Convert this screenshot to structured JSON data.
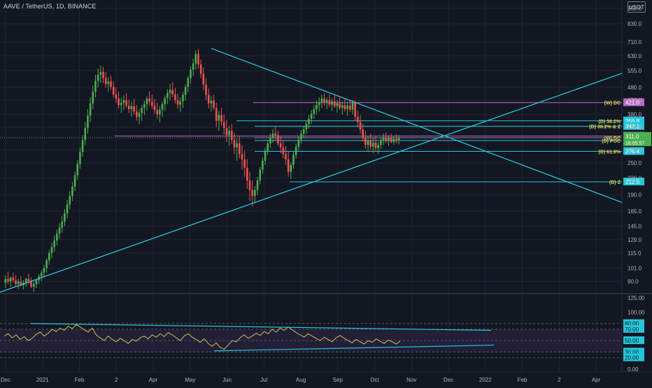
{
  "header": {
    "symbol_title": "AAVE / TetherUS, 1D, BINANCE",
    "currency": "USDT"
  },
  "colors": {
    "background": "#131722",
    "grid": "#1f2430",
    "axis_text": "#b2b5be",
    "up": "#26a69a",
    "up_body": "#4caf50",
    "down": "#ef5350",
    "trendline": "#26c6da",
    "weekly_level": "#ba68c8",
    "rsi_line": "#d4c04f",
    "rsi_band": "#2a2440",
    "label_yellow": "#e6d04f",
    "current_price": "#4caf50"
  },
  "chart_data": [
    {
      "type": "candlestick",
      "price_scale": "log",
      "ylim": [
        82,
        1020
      ],
      "x_tick_labels": [
        "Dec",
        "2021",
        "Feb",
        "2",
        "Apr",
        "May",
        "Jun",
        "Jul",
        "Aug",
        "Sep",
        "Oct",
        "Nov",
        "Dec",
        "2022",
        "Feb",
        "2",
        "Apr"
      ],
      "y_tick_labels": [
        "950.0",
        "830.0",
        "710.0",
        "630.0",
        "555.0",
        "480.0",
        "430.0",
        "380.0",
        "340.0",
        "280.0",
        "250.0",
        "220.0",
        "190.0",
        "165.0",
        "145.0",
        "129.0",
        "115.0",
        "101.0",
        "90.0"
      ],
      "y_tick_values": [
        950,
        830,
        710,
        630,
        555,
        480,
        430,
        380,
        340,
        280,
        250,
        220,
        190,
        165,
        145,
        129,
        115,
        101,
        90
      ],
      "price_levels": [
        {
          "label": "(W) DC",
          "value": 421.0,
          "value_label": "421.0",
          "color": "#ba68c8"
        },
        {
          "label": "(D) 38.2%",
          "value": 359.8,
          "value_label": "359.8",
          "color": "#26c6da"
        },
        {
          "label": "(D) 38.2% & Z",
          "value": 343.1,
          "value_label": "343.1",
          "color": "#26c6da"
        },
        {
          "label": "",
          "value": 315.5,
          "value_label": "315.5",
          "color": "#ba68c8"
        },
        {
          "label": "(W) DC",
          "value": 311.0,
          "value_label": "311.0",
          "color": "#ba68c8"
        },
        {
          "label": "(D) POC",
          "value": 303.5,
          "value_label": "303.5",
          "color": "#26c6da"
        },
        {
          "label": "(D) 61.8%",
          "value": 276.4,
          "value_label": "276.4",
          "color": "#26c6da"
        },
        {
          "label": "(D) Z",
          "value": 212.5,
          "value_label": "212.5",
          "color": "#26c6da"
        }
      ],
      "current_price": {
        "value": 311.0,
        "value_label": "311.0",
        "countdown": "16:05:57"
      },
      "candles_ohlc": [
        [
          89,
          95,
          85,
          92
        ],
        [
          92,
          98,
          88,
          90
        ],
        [
          90,
          94,
          86,
          93
        ],
        [
          93,
          97,
          89,
          91
        ],
        [
          91,
          95,
          86,
          88
        ],
        [
          88,
          92,
          84,
          90
        ],
        [
          90,
          94,
          86,
          87
        ],
        [
          87,
          91,
          84,
          89
        ],
        [
          89,
          93,
          86,
          92
        ],
        [
          92,
          96,
          88,
          90
        ],
        [
          90,
          93,
          85,
          86
        ],
        [
          86,
          90,
          82,
          88
        ],
        [
          88,
          92,
          85,
          91
        ],
        [
          91,
          96,
          88,
          94
        ],
        [
          94,
          99,
          90,
          97
        ],
        [
          97,
          104,
          93,
          101
        ],
        [
          101,
          110,
          97,
          108
        ],
        [
          108,
          118,
          104,
          115
        ],
        [
          115,
          126,
          110,
          121
        ],
        [
          121,
          134,
          116,
          128
        ],
        [
          128,
          141,
          123,
          136
        ],
        [
          136,
          149,
          130,
          143
        ],
        [
          143,
          158,
          137,
          151
        ],
        [
          151,
          168,
          145,
          162
        ],
        [
          162,
          182,
          155,
          175
        ],
        [
          175,
          196,
          168,
          188
        ],
        [
          188,
          212,
          180,
          204
        ],
        [
          204,
          232,
          196,
          225
        ],
        [
          225,
          256,
          216,
          248
        ],
        [
          248,
          286,
          238,
          275
        ],
        [
          275,
          318,
          264,
          305
        ],
        [
          305,
          356,
          292,
          338
        ],
        [
          338,
          398,
          322,
          376
        ],
        [
          376,
          440,
          356,
          418
        ],
        [
          418,
          488,
          398,
          462
        ],
        [
          462,
          535,
          440,
          508
        ],
        [
          508,
          565,
          480,
          535
        ],
        [
          535,
          580,
          500,
          548
        ],
        [
          548,
          572,
          498,
          520
        ],
        [
          520,
          548,
          478,
          494
        ],
        [
          494,
          525,
          462,
          505
        ],
        [
          505,
          530,
          470,
          482
        ],
        [
          482,
          505,
          440,
          452
        ],
        [
          452,
          480,
          420,
          436
        ],
        [
          436,
          462,
          400,
          412
        ],
        [
          412,
          440,
          385,
          420
        ],
        [
          420,
          448,
          395,
          430
        ],
        [
          430,
          456,
          402,
          410
        ],
        [
          410,
          432,
          385,
          398
        ],
        [
          398,
          425,
          372,
          408
        ],
        [
          408,
          435,
          380,
          390
        ],
        [
          390,
          412,
          360,
          372
        ],
        [
          372,
          398,
          350,
          385
        ],
        [
          385,
          412,
          360,
          402
        ],
        [
          402,
          428,
          378,
          416
        ],
        [
          416,
          445,
          392,
          436
        ],
        [
          436,
          465,
          410,
          424
        ],
        [
          424,
          450,
          398,
          410
        ],
        [
          410,
          435,
          382,
          395
        ],
        [
          395,
          420,
          366,
          380
        ],
        [
          380,
          408,
          355,
          396
        ],
        [
          396,
          425,
          372,
          416
        ],
        [
          416,
          448,
          392,
          438
        ],
        [
          438,
          472,
          414,
          458
        ],
        [
          458,
          495,
          430,
          470
        ],
        [
          470,
          502,
          440,
          452
        ],
        [
          452,
          478,
          418,
          430
        ],
        [
          430,
          455,
          400,
          414
        ],
        [
          414,
          440,
          388,
          426
        ],
        [
          426,
          462,
          402,
          450
        ],
        [
          450,
          492,
          428,
          482
        ],
        [
          482,
          530,
          460,
          520
        ],
        [
          520,
          575,
          496,
          560
        ],
        [
          560,
          615,
          530,
          590
        ],
        [
          590,
          660,
          560,
          640
        ],
        [
          640,
          668,
          565,
          585
        ],
        [
          585,
          610,
          520,
          540
        ],
        [
          540,
          570,
          470,
          492
        ],
        [
          492,
          520,
          430,
          450
        ],
        [
          450,
          475,
          400,
          418
        ],
        [
          418,
          445,
          390,
          428
        ],
        [
          428,
          450,
          395,
          402
        ],
        [
          402,
          420,
          340,
          360
        ],
        [
          360,
          392,
          330,
          378
        ],
        [
          378,
          402,
          345,
          356
        ],
        [
          356,
          380,
          320,
          338
        ],
        [
          338,
          362,
          300,
          318
        ],
        [
          318,
          345,
          290,
          330
        ],
        [
          330,
          350,
          295,
          305
        ],
        [
          305,
          325,
          270,
          286
        ],
        [
          286,
          310,
          255,
          296
        ],
        [
          296,
          315,
          260,
          270
        ],
        [
          270,
          292,
          236,
          258
        ],
        [
          258,
          278,
          222,
          240
        ],
        [
          240,
          258,
          200,
          215
        ],
        [
          215,
          232,
          180,
          198
        ],
        [
          198,
          215,
          172,
          188
        ],
        [
          188,
          205,
          176,
          198
        ],
        [
          198,
          222,
          190,
          215
        ],
        [
          215,
          242,
          208,
          236
        ],
        [
          236,
          262,
          228,
          255
        ],
        [
          255,
          285,
          246,
          278
        ],
        [
          278,
          305,
          268,
          296
        ],
        [
          296,
          322,
          285,
          312
        ],
        [
          312,
          335,
          298,
          322
        ],
        [
          322,
          342,
          305,
          318
        ],
        [
          318,
          330,
          290,
          296
        ],
        [
          296,
          315,
          272,
          286
        ],
        [
          286,
          305,
          260,
          270
        ],
        [
          270,
          290,
          246,
          258
        ],
        [
          258,
          276,
          222,
          232
        ],
        [
          232,
          252,
          218,
          246
        ],
        [
          246,
          275,
          238,
          268
        ],
        [
          268,
          296,
          260,
          288
        ],
        [
          288,
          316,
          278,
          306
        ],
        [
          306,
          332,
          295,
          322
        ],
        [
          322,
          345,
          310,
          334
        ],
        [
          334,
          360,
          322,
          350
        ],
        [
          350,
          378,
          336,
          366
        ],
        [
          366,
          395,
          350,
          382
        ],
        [
          382,
          412,
          366,
          398
        ],
        [
          398,
          428,
          380,
          412
        ],
        [
          412,
          440,
          390,
          422
        ],
        [
          422,
          450,
          402,
          436
        ],
        [
          436,
          455,
          410,
          420
        ],
        [
          420,
          440,
          398,
          430
        ],
        [
          430,
          452,
          405,
          414
        ],
        [
          414,
          438,
          392,
          426
        ],
        [
          426,
          448,
          402,
          408
        ],
        [
          408,
          430,
          386,
          418
        ],
        [
          418,
          440,
          395,
          402
        ],
        [
          402,
          425,
          380,
          412
        ],
        [
          412,
          436,
          390,
          398
        ],
        [
          398,
          422,
          376,
          410
        ],
        [
          410,
          432,
          388,
          396
        ],
        [
          396,
          430,
          380,
          422
        ],
        [
          422,
          428,
          360,
          372
        ],
        [
          372,
          392,
          340,
          356
        ],
        [
          356,
          378,
          322,
          334
        ],
        [
          334,
          352,
          300,
          312
        ],
        [
          312,
          330,
          282,
          292
        ],
        [
          292,
          316,
          276,
          304
        ],
        [
          304,
          322,
          280,
          288
        ],
        [
          288,
          310,
          272,
          298
        ],
        [
          298,
          315,
          278,
          284
        ],
        [
          284,
          300,
          270,
          292
        ],
        [
          292,
          312,
          282,
          305
        ],
        [
          305,
          322,
          292,
          312
        ],
        [
          312,
          325,
          296,
          302
        ],
        [
          302,
          318,
          290,
          310
        ],
        [
          310,
          322,
          296,
          300
        ],
        [
          300,
          316,
          292,
          308
        ],
        [
          308,
          320,
          296,
          303
        ],
        [
          303,
          318,
          294,
          311
        ]
      ],
      "trendlines": [
        {
          "from": [
            "May",
            672
          ],
          "to": [
            "Apr",
            178
          ],
          "color": "#26c6da"
        },
        {
          "from": [
            "Dec",
            78
          ],
          "to": [
            "Apr",
            542
          ],
          "color": "#26c6da"
        }
      ]
    },
    {
      "type": "line",
      "name": "RSI",
      "ylim": [
        -5,
        130
      ],
      "y_tick_labels": [
        "125.00",
        "100.00",
        "80.00",
        "70.00",
        "50.00",
        "30.00",
        "20.00",
        "0.00"
      ],
      "y_tick_values": [
        125,
        100,
        80,
        70,
        50,
        30,
        20,
        0
      ],
      "highlighted_levels": [
        {
          "value": 80,
          "label": "80.00"
        },
        {
          "value": 70,
          "label": "70.00"
        },
        {
          "value": 50,
          "label": "50.00"
        },
        {
          "value": 30,
          "label": "30.00"
        },
        {
          "value": 20,
          "label": "20.00"
        }
      ],
      "values": [
        58,
        62,
        55,
        60,
        52,
        57,
        50,
        54,
        61,
        65,
        58,
        63,
        70,
        66,
        72,
        68,
        75,
        71,
        78,
        74,
        69,
        65,
        72,
        60,
        55,
        50,
        58,
        52,
        48,
        54,
        50,
        45,
        52,
        49,
        55,
        58,
        53,
        60,
        56,
        62,
        57,
        64,
        60,
        55,
        50,
        58,
        62,
        56,
        52,
        47,
        53,
        45,
        40,
        46,
        38,
        35,
        42,
        50,
        48,
        55,
        60,
        54,
        58,
        63,
        59,
        66,
        62,
        70,
        65,
        72,
        68,
        74,
        69,
        64,
        60,
        56,
        62,
        58,
        54,
        50,
        56,
        52,
        48,
        55,
        59,
        54,
        50,
        46,
        52,
        48,
        44,
        50,
        47,
        53,
        49,
        45,
        51,
        48,
        44,
        49
      ]
    }
  ]
}
